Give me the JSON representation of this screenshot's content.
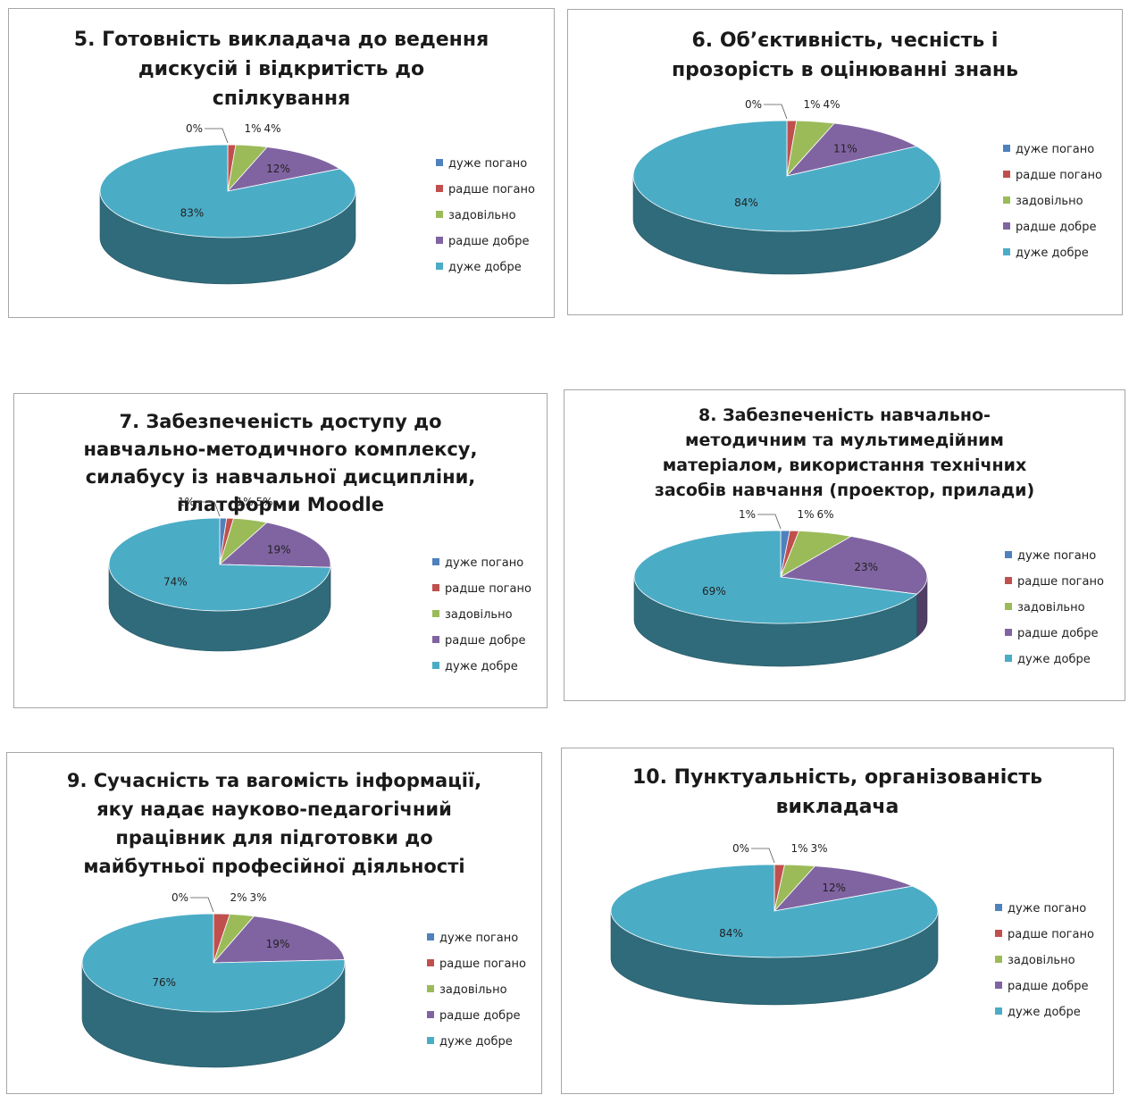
{
  "palette": {
    "very_bad": "#4f81bd",
    "rather_bad": "#c0504d",
    "satisfactory": "#9bbb59",
    "rather_good": "#8064a2",
    "very_good": "#4bacc6"
  },
  "chart_data": [
    {
      "type": "pie",
      "title": "5. Готовність викладача до ведення\nдискусій і відкритість до\nспілкування",
      "categories": [
        "дуже погано",
        "радше погано",
        "задовільно",
        "радше добре",
        "дуже добре"
      ],
      "values": [
        0,
        1,
        4,
        12,
        83
      ],
      "labels": [
        "0%",
        "1%",
        "4%",
        "12%",
        "83%"
      ],
      "legend_position": "right"
    },
    {
      "type": "pie",
      "title": "6. Об’єктивність, чесність і\nпрозорість в оцінюванні знань",
      "categories": [
        "дуже погано",
        "радше погано",
        "задовільно",
        "радше добре",
        "дуже добре"
      ],
      "values": [
        0,
        1,
        4,
        11,
        84
      ],
      "labels": [
        "0%",
        "1%",
        "4%",
        "11%",
        "84%"
      ],
      "legend_position": "right"
    },
    {
      "type": "pie",
      "title": "7. Забезпеченість доступу до\nнавчально-методичного комплексу,\nсилабусу із навчальної дисципліни,\nплатформи Moodle",
      "categories": [
        "дуже погано",
        "радше погано",
        "задовільно",
        "радше добре",
        "дуже добре"
      ],
      "values": [
        1,
        1,
        5,
        19,
        74
      ],
      "labels": [
        "1%",
        "1%",
        "5%",
        "19%",
        "74%"
      ],
      "legend_position": "right"
    },
    {
      "type": "pie",
      "title": "8. Забезпеченість навчально-\nметодичним та мультимедійним\nматеріалом, використання технічних\nзасобів навчання (проектор, прилади)",
      "categories": [
        "дуже погано",
        "радше погано",
        "задовільно",
        "радше добре",
        "дуже добре"
      ],
      "values": [
        1,
        1,
        6,
        23,
        69
      ],
      "labels": [
        "1%",
        "1%",
        "6%",
        "23%",
        "69%"
      ],
      "legend_position": "right"
    },
    {
      "type": "pie",
      "title": "9. Сучасність та вагомість інформації,\nяку надає науково-педагогічний\nпрацівник для підготовки до\nмайбутньої професійної діяльності",
      "categories": [
        "дуже погано",
        "радше погано",
        "задовільно",
        "радше добре",
        "дуже добре"
      ],
      "values": [
        0,
        2,
        3,
        19,
        76
      ],
      "labels": [
        "0%",
        "2%",
        "3%",
        "19%",
        "76%"
      ],
      "legend_position": "right"
    },
    {
      "type": "pie",
      "title": "10. Пунктуальність, організованість\nвикладача",
      "categories": [
        "дуже погано",
        "радше погано",
        "задовільно",
        "радше добре",
        "дуже добре"
      ],
      "values": [
        0,
        1,
        3,
        12,
        84
      ],
      "labels": [
        "0%",
        "1%",
        "3%",
        "12%",
        "84%"
      ],
      "legend_position": "right"
    }
  ]
}
